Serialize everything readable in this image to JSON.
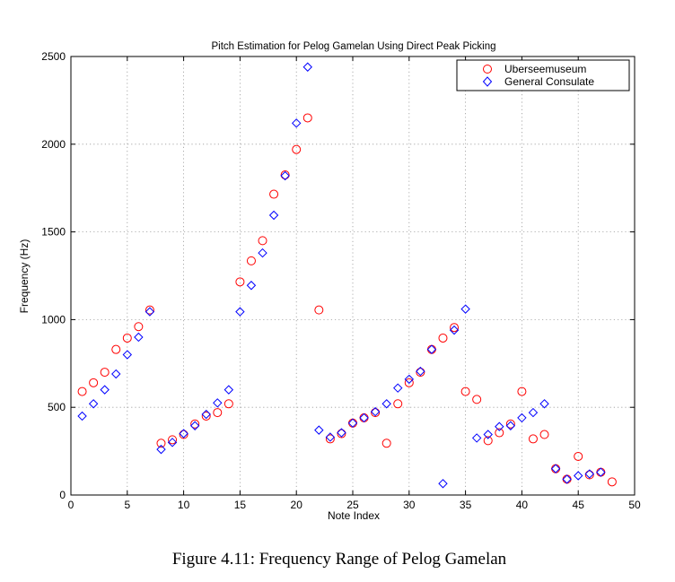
{
  "chart_data": {
    "type": "scatter",
    "title": "Pitch Estimation for Pelog Gamelan Using Direct Peak Picking",
    "xlabel": "Note Index",
    "ylabel": "Frequency (Hz)",
    "xlim": [
      0,
      50
    ],
    "ylim": [
      0,
      2500
    ],
    "xticks": [
      0,
      5,
      10,
      15,
      20,
      25,
      30,
      35,
      40,
      45,
      50
    ],
    "yticks": [
      0,
      500,
      1000,
      1500,
      2000,
      2500
    ],
    "grid": true,
    "legend_position": "top-right",
    "series": [
      {
        "name": "Uberseemuseum",
        "marker": "circle",
        "color": "#ff0000",
        "points": [
          [
            1,
            590
          ],
          [
            2,
            640
          ],
          [
            3,
            700
          ],
          [
            4,
            830
          ],
          [
            5,
            895
          ],
          [
            6,
            960
          ],
          [
            7,
            1055
          ],
          [
            8,
            295
          ],
          [
            9,
            315
          ],
          [
            10,
            345
          ],
          [
            11,
            405
          ],
          [
            12,
            450
          ],
          [
            13,
            470
          ],
          [
            14,
            520
          ],
          [
            15,
            1215
          ],
          [
            16,
            1335
          ],
          [
            17,
            1450
          ],
          [
            18,
            1715
          ],
          [
            19,
            1825
          ],
          [
            20,
            1970
          ],
          [
            21,
            2150
          ],
          [
            22,
            1055
          ],
          [
            23,
            320
          ],
          [
            24,
            350
          ],
          [
            25,
            410
          ],
          [
            26,
            440
          ],
          [
            27,
            470
          ],
          [
            28,
            295
          ],
          [
            29,
            520
          ],
          [
            30,
            640
          ],
          [
            31,
            700
          ],
          [
            32,
            830
          ],
          [
            33,
            895
          ],
          [
            34,
            955
          ],
          [
            35,
            590
          ],
          [
            36,
            545
          ],
          [
            37,
            310
          ],
          [
            38,
            355
          ],
          [
            39,
            405
          ],
          [
            40,
            590
          ],
          [
            41,
            320
          ],
          [
            42,
            345
          ],
          [
            43,
            150
          ],
          [
            44,
            90
          ],
          [
            45,
            220
          ],
          [
            46,
            115
          ],
          [
            47,
            130
          ],
          [
            48,
            75
          ]
        ]
      },
      {
        "name": "General Consulate",
        "marker": "diamond",
        "color": "#0000ff",
        "points": [
          [
            1,
            450
          ],
          [
            2,
            520
          ],
          [
            3,
            600
          ],
          [
            4,
            690
          ],
          [
            5,
            800
          ],
          [
            6,
            900
          ],
          [
            7,
            1045
          ],
          [
            8,
            260
          ],
          [
            9,
            300
          ],
          [
            10,
            350
          ],
          [
            11,
            395
          ],
          [
            12,
            460
          ],
          [
            13,
            525
          ],
          [
            14,
            600
          ],
          [
            15,
            1045
          ],
          [
            16,
            1195
          ],
          [
            17,
            1380
          ],
          [
            18,
            1595
          ],
          [
            19,
            1820
          ],
          [
            20,
            2120
          ],
          [
            21,
            2440
          ],
          [
            22,
            370
          ],
          [
            23,
            330
          ],
          [
            24,
            355
          ],
          [
            25,
            410
          ],
          [
            26,
            440
          ],
          [
            27,
            475
          ],
          [
            28,
            520
          ],
          [
            29,
            610
          ],
          [
            30,
            660
          ],
          [
            31,
            705
          ],
          [
            32,
            830
          ],
          [
            33,
            65
          ],
          [
            34,
            940
          ],
          [
            35,
            1060
          ],
          [
            36,
            325
          ],
          [
            37,
            345
          ],
          [
            38,
            390
          ],
          [
            39,
            395
          ],
          [
            40,
            440
          ],
          [
            41,
            470
          ],
          [
            42,
            520
          ],
          [
            43,
            150
          ],
          [
            44,
            90
          ],
          [
            45,
            110
          ],
          [
            46,
            120
          ],
          [
            47,
            130
          ]
        ]
      }
    ]
  },
  "caption": "Figure 4.11: Frequency Range of Pelog Gamelan"
}
